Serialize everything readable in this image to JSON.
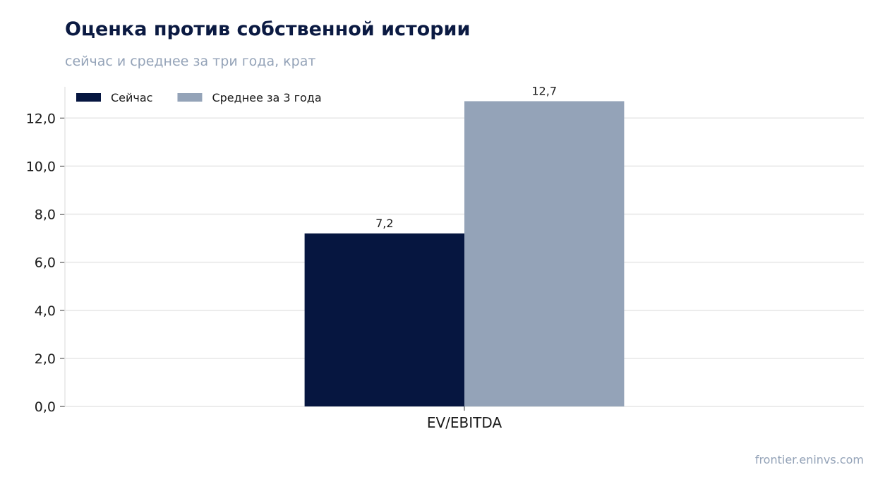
{
  "header": {
    "title": "Оценка против собственной истории",
    "subtitle": "сейчас и среднее за три года, крат"
  },
  "footer": {
    "source": "frontier.eninvs.com"
  },
  "chart_data": {
    "type": "bar",
    "categories": [
      "EV/EBITDA"
    ],
    "series": [
      {
        "name": "Сейчас",
        "values": [
          7.2
        ],
        "color": "#061640"
      },
      {
        "name": "Среднее за 3 года",
        "values": [
          12.7
        ],
        "color": "#94a3b8"
      }
    ],
    "data_labels": [
      [
        "7,2"
      ],
      [
        "12,7"
      ]
    ],
    "y_ticks": [
      "0,0",
      "2,0",
      "4,0",
      "6,0",
      "8,0",
      "10,0",
      "12,0"
    ],
    "y_tick_values": [
      0,
      2,
      4,
      6,
      8,
      10,
      12
    ],
    "ylim": [
      0,
      13.3
    ],
    "grid": true,
    "legend_position": "top-left",
    "title": "Оценка против собственной истории",
    "subtitle": "сейчас и среднее за три года, крат",
    "xlabel": "",
    "ylabel": ""
  }
}
